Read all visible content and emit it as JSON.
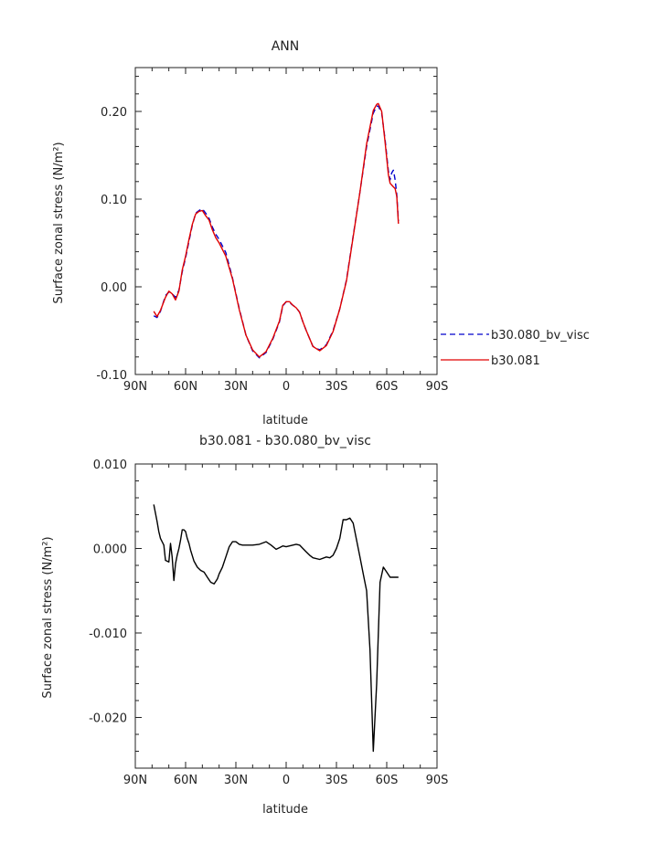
{
  "chart_data": [
    {
      "type": "line",
      "title": "ANN",
      "xlabel": "latitude",
      "ylabel": "Surface zonal stress (N/m²)",
      "xlim": [
        90,
        -90
      ],
      "ylim": [
        -0.1,
        0.25
      ],
      "xticks": [
        {
          "value": 90,
          "label": "90N"
        },
        {
          "value": 60,
          "label": "60N"
        },
        {
          "value": 30,
          "label": "30N"
        },
        {
          "value": 0,
          "label": "0"
        },
        {
          "value": -30,
          "label": "30S"
        },
        {
          "value": -60,
          "label": "60S"
        },
        {
          "value": -90,
          "label": "90S"
        }
      ],
      "yticks": [
        {
          "value": 0.2,
          "label": "0.20"
        },
        {
          "value": 0.1,
          "label": "0.10"
        },
        {
          "value": 0.0,
          "label": "0.00"
        },
        {
          "value": -0.1,
          "label": "-0.10"
        }
      ],
      "legend_position": "right",
      "series": [
        {
          "name": "b30.080_bv_visc",
          "color": "#0000cc",
          "dash": "dashed",
          "x": [
            79,
            77,
            75,
            72,
            70,
            68,
            66,
            64,
            62,
            60,
            58,
            56,
            54,
            52,
            50,
            48,
            46,
            44,
            42,
            40,
            36,
            32,
            28,
            24,
            20,
            16,
            12,
            8,
            4,
            2,
            0,
            -2,
            -4,
            -6,
            -8,
            -10,
            -12,
            -16,
            -20,
            -24,
            -28,
            -32,
            -36,
            -40,
            -44,
            -48,
            -52,
            -54,
            -55,
            -57,
            -59,
            -61,
            -62,
            -63,
            -64,
            -65,
            -66,
            -67
          ],
          "y": [
            -0.033,
            -0.035,
            -0.028,
            -0.01,
            -0.006,
            -0.008,
            -0.012,
            -0.004,
            0.017,
            0.033,
            0.052,
            0.07,
            0.084,
            0.087,
            0.089,
            0.084,
            0.078,
            0.068,
            0.06,
            0.054,
            0.039,
            0.01,
            -0.025,
            -0.055,
            -0.073,
            -0.081,
            -0.075,
            -0.06,
            -0.04,
            -0.022,
            -0.017,
            -0.018,
            -0.021,
            -0.024,
            -0.029,
            -0.04,
            -0.05,
            -0.068,
            -0.072,
            -0.066,
            -0.05,
            -0.025,
            0.008,
            0.058,
            0.108,
            0.16,
            0.198,
            0.206,
            0.206,
            0.198,
            0.168,
            0.132,
            0.122,
            0.13,
            0.133,
            0.122,
            0.105,
            0.075
          ]
        },
        {
          "name": "b30.081",
          "color": "#e00000",
          "dash": "solid",
          "x": [
            79,
            77,
            75,
            72,
            70,
            68,
            66,
            64,
            62,
            60,
            58,
            56,
            54,
            52,
            50,
            48,
            46,
            44,
            42,
            40,
            36,
            32,
            28,
            24,
            20,
            16,
            12,
            8,
            4,
            2,
            0,
            -2,
            -4,
            -6,
            -8,
            -10,
            -12,
            -16,
            -20,
            -24,
            -28,
            -32,
            -36,
            -40,
            -44,
            -48,
            -52,
            -54,
            -55,
            -57,
            -59,
            -61,
            -62,
            -63,
            -64,
            -65,
            -66,
            -67
          ],
          "y": [
            -0.028,
            -0.034,
            -0.027,
            -0.012,
            -0.005,
            -0.008,
            -0.015,
            -0.005,
            0.019,
            0.035,
            0.054,
            0.071,
            0.083,
            0.086,
            0.087,
            0.081,
            0.076,
            0.065,
            0.056,
            0.05,
            0.035,
            0.009,
            -0.026,
            -0.055,
            -0.072,
            -0.08,
            -0.074,
            -0.059,
            -0.039,
            -0.021,
            -0.017,
            -0.017,
            -0.021,
            -0.024,
            -0.029,
            -0.04,
            -0.05,
            -0.068,
            -0.073,
            -0.067,
            -0.051,
            -0.025,
            0.007,
            0.057,
            0.108,
            0.163,
            0.201,
            0.208,
            0.209,
            0.2,
            0.165,
            0.128,
            0.118,
            0.116,
            0.114,
            0.112,
            0.103,
            0.072
          ]
        }
      ]
    },
    {
      "type": "line",
      "title": "b30.081 - b30.080_bv_visc",
      "xlabel": "latitude",
      "ylabel": "Surface zonal stress (N/m²)",
      "xlim": [
        90,
        -90
      ],
      "ylim": [
        -0.026,
        0.01
      ],
      "xticks": [
        {
          "value": 90,
          "label": "90N"
        },
        {
          "value": 60,
          "label": "60N"
        },
        {
          "value": 30,
          "label": "30N"
        },
        {
          "value": 0,
          "label": "0"
        },
        {
          "value": -30,
          "label": "30S"
        },
        {
          "value": -60,
          "label": "60S"
        },
        {
          "value": -90,
          "label": "90S"
        }
      ],
      "yticks": [
        {
          "value": 0.01,
          "label": "0.010"
        },
        {
          "value": 0.0,
          "label": "0.000"
        },
        {
          "value": -0.01,
          "label": "-0.010"
        },
        {
          "value": -0.02,
          "label": "-0.020"
        }
      ],
      "series": [
        {
          "color": "#000000",
          "dash": "solid",
          "x": [
            79,
            77,
            76,
            75,
            73,
            72,
            70,
            69,
            68,
            67,
            66,
            65,
            64,
            63,
            62,
            61,
            60,
            59,
            58,
            57,
            55,
            53,
            51,
            49,
            47,
            45,
            43,
            41,
            40,
            38,
            36,
            34,
            32,
            30,
            28,
            26,
            24,
            20,
            16,
            12,
            9,
            6,
            4,
            2,
            0,
            -2,
            -4,
            -6,
            -8,
            -10,
            -12,
            -14,
            -16,
            -20,
            -24,
            -26,
            -28,
            -30,
            -32,
            -34,
            -36,
            -38,
            -40,
            -42,
            -44,
            -46,
            -48,
            -50,
            -52,
            -54,
            -56,
            -58,
            -60,
            -62,
            -63,
            -64,
            -65,
            -66,
            -67
          ],
          "y": [
            0.0052,
            0.0032,
            0.002,
            0.0012,
            0.0004,
            -0.0014,
            -0.0016,
            0.0006,
            -0.001,
            -0.0038,
            -0.0018,
            -0.0008,
            0.0,
            0.001,
            0.0022,
            0.0022,
            0.002,
            0.0012,
            0.0006,
            -0.0002,
            -0.0015,
            -0.0022,
            -0.0026,
            -0.0028,
            -0.0034,
            -0.004,
            -0.0042,
            -0.0036,
            -0.003,
            -0.0022,
            -0.001,
            0.0002,
            0.0008,
            0.0008,
            0.0005,
            0.0004,
            0.0004,
            0.0004,
            0.0005,
            0.0008,
            0.0004,
            -0.0001,
            0.0001,
            0.0003,
            0.0002,
            0.0003,
            0.0004,
            0.0005,
            0.0004,
            0.0,
            -0.0004,
            -0.0008,
            -0.0011,
            -0.0013,
            -0.001,
            -0.0011,
            -0.0008,
            0.0,
            0.0012,
            0.0034,
            0.0034,
            0.0036,
            0.003,
            0.001,
            -0.001,
            -0.003,
            -0.005,
            -0.012,
            -0.024,
            -0.016,
            -0.004,
            -0.0022,
            -0.0028,
            -0.0034,
            -0.0034,
            -0.0034,
            -0.0034,
            -0.0034,
            -0.0034
          ]
        }
      ]
    }
  ]
}
